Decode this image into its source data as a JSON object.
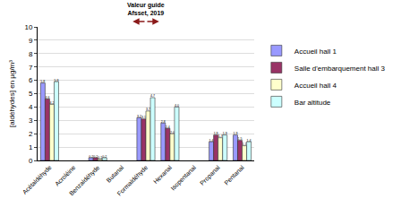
{
  "chart_data": {
    "type": "bar",
    "y_label": "[aldéhydes] en µg/m³",
    "categories": [
      "Acétaldéhyde",
      "Acroléine",
      "Benzaldéhyde",
      "Butanal",
      "Formaldéhyde",
      "Hexanal",
      "Isopentanal",
      "Propanal",
      "Pentanal"
    ],
    "series": [
      {
        "name": "Accueil hall 1",
        "color": "#9999ff",
        "values": [
          5.8,
          null,
          0.2,
          null,
          3.2,
          2.8,
          null,
          1.4,
          1.9
        ],
        "value_labels": [
          "5,8",
          null,
          "0,2",
          null,
          "3,2",
          "2,8",
          null,
          "1,4",
          "1,9"
        ]
      },
      {
        "name": "Salle d'embarquement hall 3",
        "color": "#993366",
        "values": [
          4.6,
          null,
          0.2,
          null,
          3.1,
          2.4,
          null,
          1.9,
          1.5
        ],
        "value_labels": [
          "4,6",
          null,
          "0,2",
          null,
          "3,1",
          "2,4",
          null,
          "1,9",
          "1,5"
        ]
      },
      {
        "name": "Accueil hall 4",
        "color": "#ffffcc",
        "values": [
          4.2,
          null,
          0.1,
          null,
          3.7,
          2.0,
          null,
          1.7,
          1.1
        ],
        "value_labels": [
          "4,2",
          null,
          "0,1",
          null,
          "3,7",
          "2,0",
          null,
          "1,7",
          "1,1"
        ]
      },
      {
        "name": "Bar altitude",
        "color": "#ccffff",
        "values": [
          5.9,
          null,
          0.2,
          null,
          4.7,
          4.0,
          null,
          1.9,
          1.4
        ],
        "value_labels": [
          "5,9",
          null,
          "0,2",
          null,
          "4,7",
          "4,0",
          null,
          "1,9",
          "1,4"
        ]
      }
    ],
    "ylim": [
      0,
      10
    ],
    "yticks": [
      0,
      1,
      2,
      3,
      4,
      5,
      6,
      7,
      8,
      9,
      10
    ],
    "grid": true,
    "legend": "right",
    "data_labels": true,
    "annotations": [
      {
        "text": "Valeur guide\nAfsset, 2019",
        "category": "Formaldéhyde"
      }
    ]
  }
}
